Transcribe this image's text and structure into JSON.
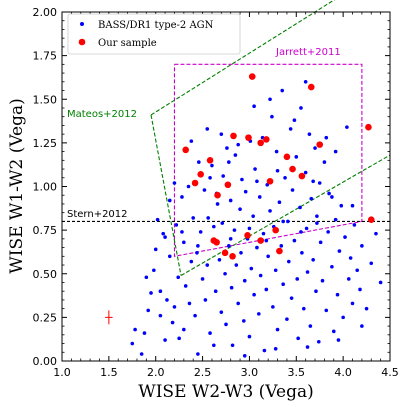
{
  "chart_data": {
    "type": "scatter",
    "xlabel": "WISE W2-W3 (Vega)",
    "ylabel": "WISE W1-W2 (Vega)",
    "xlim": [
      1.0,
      4.5
    ],
    "ylim": [
      0.0,
      2.0
    ],
    "xticks": [
      "1.0",
      "1.5",
      "2.0",
      "2.5",
      "3.0",
      "3.5",
      "4.0",
      "4.5"
    ],
    "yticks": [
      "0.00",
      "0.25",
      "0.50",
      "0.75",
      "1.00",
      "1.25",
      "1.50",
      "1.75",
      "2.00"
    ],
    "legend_position": "top-left",
    "grid": false,
    "series": [
      {
        "name": "BASS/DR1 type-2 AGN",
        "color": "#0000ff",
        "marker": "small-dot",
        "points": [
          [
            1.75,
            0.1
          ],
          [
            1.78,
            0.18
          ],
          [
            1.85,
            0.04
          ],
          [
            1.88,
            0.16
          ],
          [
            1.92,
            0.29
          ],
          [
            1.95,
            0.39
          ],
          [
            1.98,
            0.52
          ],
          [
            2.02,
            0.81
          ],
          [
            2.05,
            0.4
          ],
          [
            2.08,
            0.73
          ],
          [
            2.1,
            0.12
          ],
          [
            2.12,
            0.35
          ],
          [
            2.15,
            0.6
          ],
          [
            2.18,
            0.22
          ],
          [
            2.2,
            0.31
          ],
          [
            2.22,
            0.78
          ],
          [
            2.24,
            0.48
          ],
          [
            2.25,
            0.13
          ],
          [
            2.28,
            0.94
          ],
          [
            2.3,
            0.68
          ],
          [
            2.32,
            0.43
          ],
          [
            2.35,
            1.0
          ],
          [
            2.36,
            0.33
          ],
          [
            2.38,
            0.57
          ],
          [
            2.4,
            0.82
          ],
          [
            2.42,
            0.26
          ],
          [
            2.44,
            0.62
          ],
          [
            2.45,
            0.04
          ],
          [
            2.46,
            1.14
          ],
          [
            2.48,
            0.74
          ],
          [
            2.5,
            0.47
          ],
          [
            2.52,
            0.98
          ],
          [
            2.53,
            0.35
          ],
          [
            2.55,
            0.55
          ],
          [
            2.56,
            0.82
          ],
          [
            2.58,
            0.16
          ],
          [
            2.6,
            1.12
          ],
          [
            2.62,
            0.69
          ],
          [
            2.64,
            0.4
          ],
          [
            2.65,
            0.96
          ],
          [
            2.66,
            0.9
          ],
          [
            2.68,
            0.58
          ],
          [
            2.7,
            0.28
          ],
          [
            2.71,
            0.79
          ],
          [
            2.72,
            1.06
          ],
          [
            2.74,
            0.5
          ],
          [
            2.75,
            0.21
          ],
          [
            2.76,
            1.22
          ],
          [
            2.78,
            0.66
          ],
          [
            2.8,
            0.92
          ],
          [
            2.81,
            0.42
          ],
          [
            2.82,
            0.09
          ],
          [
            2.84,
            0.75
          ],
          [
            2.85,
            1.18
          ],
          [
            2.86,
            0.55
          ],
          [
            2.88,
            0.33
          ],
          [
            2.9,
            0.87
          ],
          [
            2.91,
            0.62
          ],
          [
            2.92,
            1.04
          ],
          [
            2.94,
            0.23
          ],
          [
            2.95,
            0.46
          ],
          [
            2.96,
            0.97
          ],
          [
            2.98,
            0.7
          ],
          [
            3.0,
            0.14
          ],
          [
            3.01,
            1.26
          ],
          [
            3.02,
            0.53
          ],
          [
            3.04,
            0.83
          ],
          [
            3.05,
            0.38
          ],
          [
            3.06,
            1.1
          ],
          [
            3.08,
            0.65
          ],
          [
            3.1,
            0.27
          ],
          [
            3.11,
            0.94
          ],
          [
            3.12,
            0.49
          ],
          [
            3.14,
            1.28
          ],
          [
            3.15,
            0.73
          ],
          [
            3.16,
            0.06
          ],
          [
            3.18,
            0.41
          ],
          [
            3.19,
            1.01
          ],
          [
            3.2,
            0.6
          ],
          [
            3.22,
            0.86
          ],
          [
            3.24,
            1.4
          ],
          [
            3.25,
            0.31
          ],
          [
            3.26,
            0.77
          ],
          [
            3.28,
            0.52
          ],
          [
            3.29,
            1.2
          ],
          [
            3.3,
            0.18
          ],
          [
            3.32,
            0.91
          ],
          [
            3.34,
            0.66
          ],
          [
            3.35,
            1.55
          ],
          [
            3.36,
            0.44
          ],
          [
            3.38,
            1.05
          ],
          [
            3.4,
            0.24
          ],
          [
            3.41,
            0.8
          ],
          [
            3.42,
            0.57
          ],
          [
            3.44,
            1.33
          ],
          [
            3.45,
            0.36
          ],
          [
            3.46,
            0.98
          ],
          [
            3.48,
            0.69
          ],
          [
            3.5,
            1.17
          ],
          [
            3.51,
            0.47
          ],
          [
            3.52,
            0.13
          ],
          [
            3.54,
            0.88
          ],
          [
            3.55,
            1.45
          ],
          [
            3.56,
            0.62
          ],
          [
            3.58,
            0.3
          ],
          [
            3.6,
            1.08
          ],
          [
            3.61,
            0.76
          ],
          [
            3.62,
            0.51
          ],
          [
            3.64,
            1.3
          ],
          [
            3.65,
            0.2
          ],
          [
            3.66,
            0.93
          ],
          [
            3.68,
            0.58
          ],
          [
            3.7,
            1.22
          ],
          [
            3.71,
            0.4
          ],
          [
            3.72,
            0.83
          ],
          [
            3.74,
            0.11
          ],
          [
            3.75,
            1.02
          ],
          [
            3.76,
            0.68
          ],
          [
            3.78,
            0.46
          ],
          [
            3.8,
            1.14
          ],
          [
            3.82,
            0.29
          ],
          [
            3.84,
            0.74
          ],
          [
            3.85,
            0.96
          ],
          [
            3.88,
            0.54
          ],
          [
            3.9,
            0.17
          ],
          [
            3.92,
            0.81
          ],
          [
            3.94,
            0.38
          ],
          [
            3.96,
            0.63
          ],
          [
            3.98,
            0.89
          ],
          [
            4.0,
            0.25
          ],
          [
            4.02,
            0.71
          ],
          [
            4.04,
            1.34
          ],
          [
            4.06,
            0.47
          ],
          [
            4.08,
            0.59
          ],
          [
            4.1,
            0.33
          ],
          [
            4.12,
            0.78
          ],
          [
            4.15,
            0.52
          ],
          [
            4.18,
            0.41
          ],
          [
            4.2,
            0.66
          ],
          [
            4.25,
            0.3
          ],
          [
            4.3,
            0.56
          ],
          [
            4.35,
            0.73
          ],
          [
            2.38,
            1.26
          ],
          [
            2.55,
            1.33
          ],
          [
            2.7,
            1.3
          ],
          [
            2.88,
            1.24
          ],
          [
            3.05,
            1.46
          ],
          [
            3.22,
            1.5
          ],
          [
            3.48,
            1.38
          ],
          [
            3.6,
            1.6
          ],
          [
            3.82,
            1.28
          ],
          [
            3.92,
            1.2
          ],
          [
            2.45,
            0.66
          ],
          [
            2.62,
            0.77
          ],
          [
            2.8,
            0.7
          ],
          [
            3.0,
            0.76
          ],
          [
            3.18,
            0.69
          ],
          [
            3.36,
            0.8
          ],
          [
            3.55,
            0.74
          ],
          [
            3.72,
            0.79
          ],
          [
            2.28,
            0.74
          ],
          [
            2.1,
            0.71
          ],
          [
            2.15,
            0.92
          ],
          [
            2.2,
            1.02
          ],
          [
            2.58,
            1.05
          ],
          [
            2.78,
            1.14
          ],
          [
            3.08,
            1.03
          ],
          [
            3.3,
            1.09
          ],
          [
            3.68,
            1.03
          ],
          [
            3.88,
            0.94
          ],
          [
            4.1,
            0.89
          ],
          [
            2.0,
            0.64
          ],
          [
            1.9,
            0.48
          ],
          [
            2.05,
            0.26
          ],
          [
            2.3,
            0.18
          ],
          [
            2.62,
            0.09
          ],
          [
            2.95,
            0.03
          ],
          [
            3.28,
            0.07
          ],
          [
            3.62,
            0.08
          ],
          [
            3.95,
            0.12
          ],
          [
            4.2,
            0.2
          ],
          [
            4.4,
            0.45
          ]
        ]
      },
      {
        "name": "Our sample",
        "color": "#ff0000",
        "marker": "large-dot",
        "points": [
          [
            2.32,
            1.21
          ],
          [
            2.48,
            1.07
          ],
          [
            2.42,
            1.02
          ],
          [
            2.58,
            1.15
          ],
          [
            2.66,
            0.95
          ],
          [
            2.77,
            1.01
          ],
          [
            2.83,
            1.29
          ],
          [
            2.99,
            1.28
          ],
          [
            3.12,
            1.25
          ],
          [
            3.18,
            1.27
          ],
          [
            3.03,
            1.63
          ],
          [
            3.22,
            1.03
          ],
          [
            3.4,
            1.17
          ],
          [
            3.46,
            1.1
          ],
          [
            3.56,
            1.06
          ],
          [
            3.66,
            1.57
          ],
          [
            3.75,
            1.24
          ],
          [
            4.27,
            1.34
          ],
          [
            4.3,
            0.81
          ],
          [
            3.28,
            0.75
          ],
          [
            3.12,
            0.69
          ],
          [
            2.98,
            0.72
          ],
          [
            2.65,
            0.68
          ],
          [
            2.62,
            0.69
          ],
          [
            2.74,
            0.62
          ],
          [
            2.82,
            0.6
          ],
          [
            3.32,
            0.63
          ]
        ]
      }
    ],
    "annotations": [
      {
        "text": "Jarrett+2011",
        "color": "#cc00cc"
      },
      {
        "text": "Mateos+2012",
        "color": "#008000"
      },
      {
        "text": "Stern+2012",
        "color": "#000000"
      }
    ],
    "regions": {
      "jarrett": {
        "color": "#cc00cc",
        "polygon": [
          [
            2.2,
            1.7
          ],
          [
            4.2,
            1.7
          ],
          [
            4.2,
            0.8
          ],
          [
            2.2,
            0.6
          ],
          [
            2.2,
            1.7
          ]
        ]
      },
      "mateos_upper": {
        "color": "#008000",
        "line": [
          [
            1.95,
            1.41
          ],
          [
            4.5,
            2.27
          ]
        ]
      },
      "mateos_left": {
        "color": "#008000",
        "line": [
          [
            1.95,
            1.41
          ],
          [
            2.27,
            0.49
          ]
        ]
      },
      "mateos_lower": {
        "color": "#008000",
        "line": [
          [
            2.27,
            0.49
          ],
          [
            4.5,
            1.18
          ]
        ]
      },
      "stern": {
        "color": "#000000",
        "y": 0.8
      }
    },
    "error_bar": {
      "x": 1.5,
      "y": 0.25,
      "xerr": 0.04,
      "yerr": 0.04,
      "color": "#ff0000"
    }
  }
}
